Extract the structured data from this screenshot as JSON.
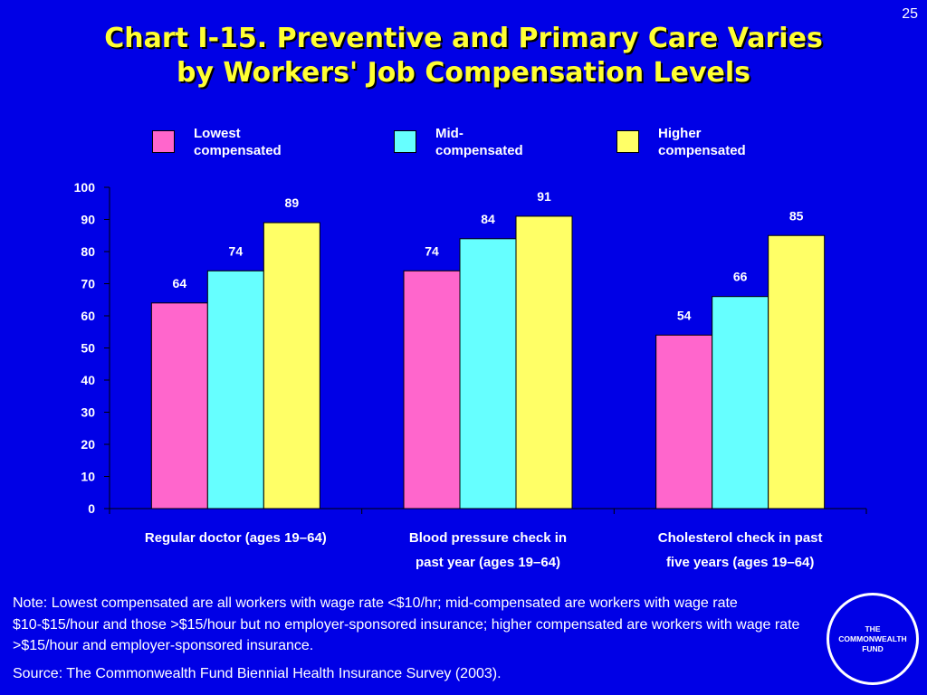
{
  "page_number": "25",
  "title": "Chart I-15. Preventive and Primary Care Varies\nby Workers' Job Compensation Levels",
  "note": "Note: Lowest compensated are all workers with wage rate <$10/hr; mid-compensated are workers with wage rate $10-$15/hour and those >$15/hour but no employer-sponsored insurance; higher compensated are workers with wage rate >$15/hour and employer-sponsored insurance.",
  "source": "Source: The Commonwealth Fund Biennial Health Insurance Survey (2003).",
  "logo_text": "THE\nCOMMONWEALTH\nFUND",
  "legend": [
    {
      "label": "Lowest\ncompensated",
      "color": "#ff66cc"
    },
    {
      "label": "Mid-\ncompensated",
      "color": "#66ffff"
    },
    {
      "label": "Higher\ncompensated",
      "color": "#ffff66"
    }
  ],
  "chart_data": {
    "type": "bar",
    "categories": [
      [
        "Regular doctor (ages 19–64)"
      ],
      [
        "Blood pressure check in",
        "past year (ages 19–64)"
      ],
      [
        "Cholesterol check in past",
        "five years (ages 19–64)"
      ]
    ],
    "series": [
      {
        "name": "Lowest compensated",
        "values": [
          64,
          74,
          54
        ],
        "color": "#ff66cc"
      },
      {
        "name": "Mid-compensated",
        "values": [
          74,
          84,
          66
        ],
        "color": "#66ffff"
      },
      {
        "name": "Higher compensated",
        "values": [
          89,
          91,
          85
        ],
        "color": "#ffff66"
      }
    ],
    "ylim": [
      0,
      100
    ],
    "yticks": [
      0,
      10,
      20,
      30,
      40,
      50,
      60,
      70,
      80,
      90,
      100
    ],
    "data_labels": true,
    "grid": false,
    "legend_position": "top"
  }
}
